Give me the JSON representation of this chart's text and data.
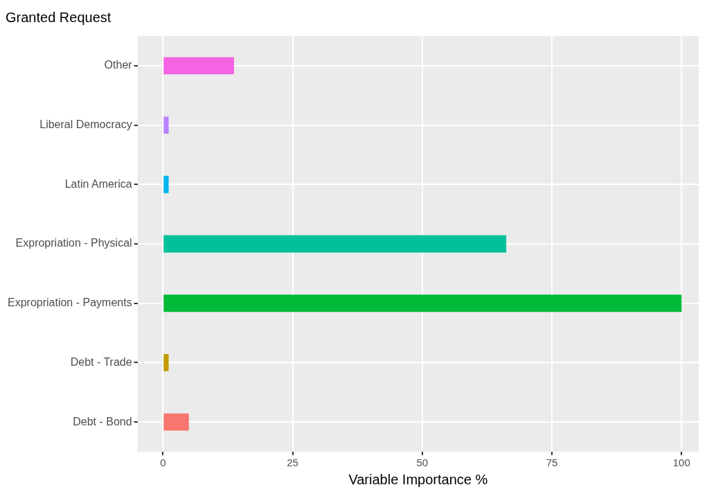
{
  "chart_data": {
    "type": "bar",
    "orientation": "horizontal",
    "title": "Granted Request",
    "xlabel": "Variable Importance %",
    "categories": [
      "Other",
      "Liberal Democracy",
      "Latin America",
      "Expropriation - Physical",
      "Expropriation - Payments",
      "Debt - Trade",
      "Debt - Bond"
    ],
    "values": [
      13.7,
      1.1,
      1.1,
      66.2,
      100,
      1.1,
      5.0
    ],
    "colors": [
      "#f564e3",
      "#b983ff",
      "#00b4ef",
      "#00c19a",
      "#00ba38",
      "#c49a00",
      "#f8766d"
    ],
    "xlim": [
      -4.9,
      103.3
    ],
    "xticks": [
      0,
      25,
      50,
      75,
      100
    ],
    "grid": true,
    "legend": false
  }
}
